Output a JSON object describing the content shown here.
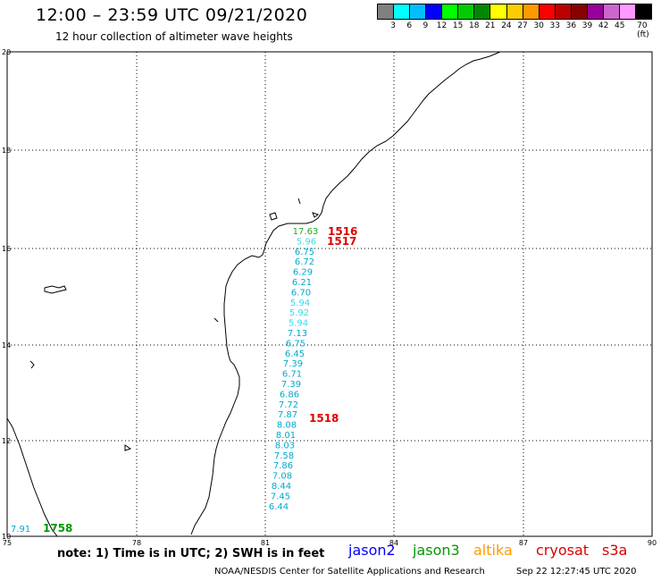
{
  "header": {
    "title": "12:00 – 23:59 UTC 09/21/2020",
    "subtitle": "12 hour collection of altimeter wave heights"
  },
  "scale": {
    "colors": [
      "#808080",
      "#00ffff",
      "#00bfff",
      "#0000ff",
      "#00ff00",
      "#00cc00",
      "#008800",
      "#ffff00",
      "#ffcc00",
      "#ff9900",
      "#ff0000",
      "#bb0000",
      "#880000",
      "#990099",
      "#cc66cc",
      "#ff99ff",
      "#000000"
    ],
    "labels": [
      "3",
      "6",
      "9",
      "12",
      "15",
      "18",
      "21",
      "24",
      "27",
      "30",
      "33",
      "36",
      "39",
      "42",
      "45",
      "70 (ft)"
    ]
  },
  "map": {
    "lat_labels": [
      "20",
      "18",
      "16",
      "14",
      "12",
      "10"
    ],
    "lon_labels": [
      "75",
      "78",
      "81",
      "84",
      "87",
      "90"
    ]
  },
  "wave_heights": [
    {
      "value": "17.63",
      "color": "#22aa22"
    },
    {
      "value": "5.96",
      "color": "#33ddee"
    },
    {
      "value": "6.75",
      "color": "#00aacc"
    },
    {
      "value": "6.72",
      "color": "#00aacc"
    },
    {
      "value": "6.29",
      "color": "#00aacc"
    },
    {
      "value": "6.21",
      "color": "#00aacc"
    },
    {
      "value": "6.70",
      "color": "#00aacc"
    },
    {
      "value": "5.94",
      "color": "#33ddee"
    },
    {
      "value": "5.92",
      "color": "#33ddee"
    },
    {
      "value": "5.94",
      "color": "#33ddee"
    },
    {
      "value": "7.13",
      "color": "#00aacc"
    },
    {
      "value": "6.75",
      "color": "#00aacc"
    },
    {
      "value": "6.45",
      "color": "#00aacc"
    },
    {
      "value": "7.39",
      "color": "#00aacc"
    },
    {
      "value": "6.71",
      "color": "#00aacc"
    },
    {
      "value": "7.39",
      "color": "#00aacc"
    },
    {
      "value": "6.86",
      "color": "#00aacc"
    },
    {
      "value": "7.72",
      "color": "#00aacc"
    },
    {
      "value": "7.87",
      "color": "#00aacc"
    },
    {
      "value": "8.08",
      "color": "#00aacc"
    },
    {
      "value": "8.01",
      "color": "#00aacc"
    },
    {
      "value": "8.03",
      "color": "#00aacc"
    },
    {
      "value": "7.58",
      "color": "#00aacc"
    },
    {
      "value": "7.86",
      "color": "#00aacc"
    },
    {
      "value": "7.08",
      "color": "#00aacc"
    },
    {
      "value": "8.44",
      "color": "#00aacc"
    },
    {
      "value": "7.45",
      "color": "#00aacc"
    },
    {
      "value": "6.44",
      "color": "#00aacc"
    }
  ],
  "bottom_left_reading": {
    "value": "7.91",
    "color": "#00aacc"
  },
  "times": [
    {
      "label": "1516",
      "color": "#dd0000"
    },
    {
      "label": "1517",
      "color": "#dd0000"
    },
    {
      "label": "1518",
      "color": "#dd0000"
    },
    {
      "label": "1758",
      "color": "#009900"
    }
  ],
  "footer": {
    "note": "note:  1) Time is in UTC;  2) SWH is in feet",
    "credit": "NOAA/NESDIS Center for Satellite Applications and Research",
    "timestamp": "Sep 22 12:27:45 UTC 2020"
  },
  "legend": [
    {
      "name": "jason2",
      "color": "#0000ff"
    },
    {
      "name": "jason3",
      "color": "#009900"
    },
    {
      "name": "altika",
      "color": "#ff9900"
    },
    {
      "name": "cryosat",
      "color": "#dd0000"
    },
    {
      "name": "s3a",
      "color": "#dd0000"
    }
  ]
}
